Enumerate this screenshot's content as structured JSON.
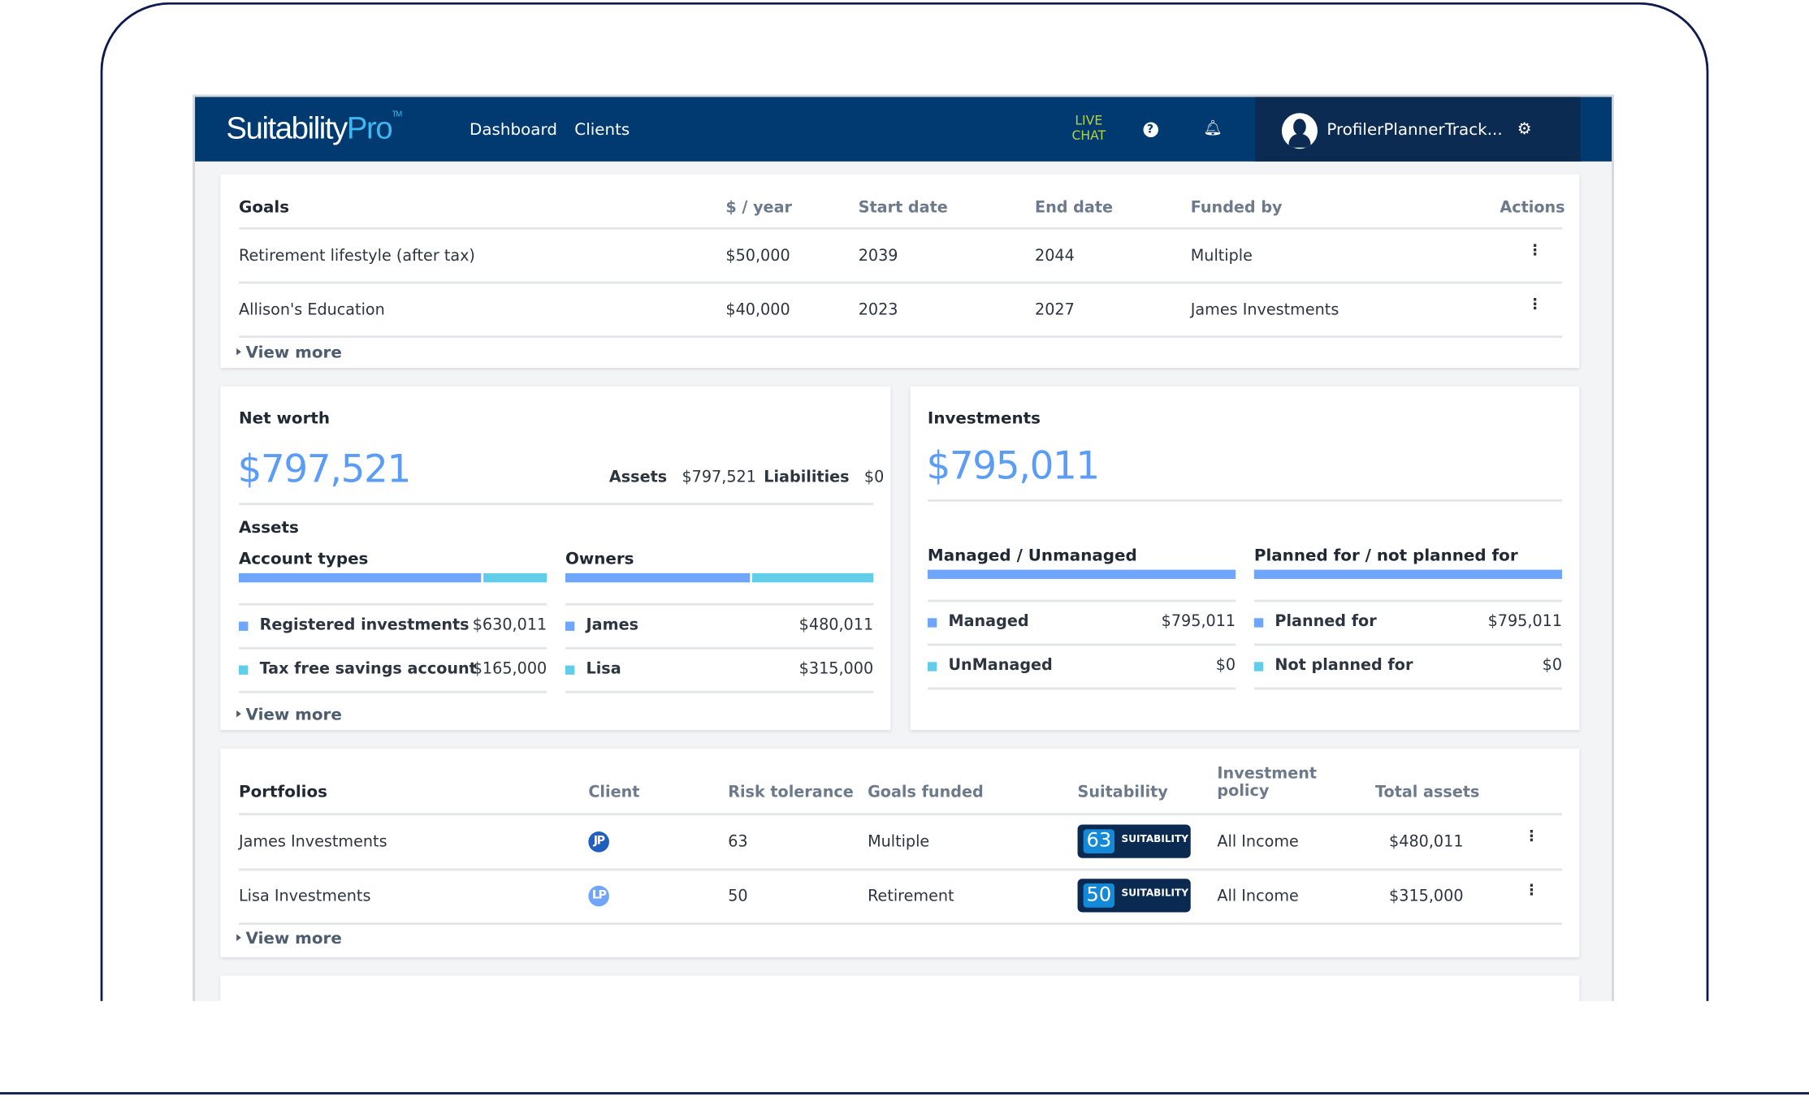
{
  "colors": {
    "header": "#003a70",
    "accent": "#5b9cf6",
    "secondary": "#62cdea",
    "badge": "#0a2a52"
  },
  "header": {
    "logo_main": "Suitability",
    "logo_pro": "Pro",
    "logo_tm": "TM",
    "nav": [
      "Dashboard",
      "Clients"
    ],
    "live_chat": [
      "LIVE",
      "CHAT"
    ],
    "icons": [
      "help-icon",
      "bell-icon",
      "gear-icon"
    ],
    "user": "ProfilerPlannerTrack..."
  },
  "goals": {
    "title": "Goals",
    "columns": [
      "$ / year",
      "Start date",
      "End date",
      "Funded by",
      "Actions"
    ],
    "rows": [
      {
        "name": "Retirement lifestyle (after tax)",
        "amount": "$50,000",
        "start": "2039",
        "end": "2044",
        "funded": "Multiple"
      },
      {
        "name": "Allison's Education",
        "amount": "$40,000",
        "start": "2023",
        "end": "2027",
        "funded": "James Investments"
      }
    ],
    "view_more": "View more"
  },
  "networth": {
    "title": "Net worth",
    "value": "$797,521",
    "assets_label": "Assets",
    "assets": "$797,521",
    "liab_label": "Liabilities",
    "liab": "$0",
    "section": "Assets",
    "account_types": {
      "title": "Account types",
      "split_pct": [
        79.2,
        20.8
      ],
      "items": [
        {
          "label": "Registered investments",
          "value": "$630,011"
        },
        {
          "label": "Tax free savings account",
          "value": "$165,000"
        }
      ]
    },
    "owners": {
      "title": "Owners",
      "split_pct": [
        60.4,
        39.6
      ],
      "items": [
        {
          "label": "James",
          "value": "$480,011"
        },
        {
          "label": "Lisa",
          "value": "$315,000"
        }
      ]
    },
    "view_more": "View more"
  },
  "investments": {
    "title": "Investments",
    "value": "$795,011",
    "managed": {
      "title": "Managed / Unmanaged",
      "split_pct": [
        100,
        0
      ],
      "items": [
        {
          "label": "Managed",
          "value": "$795,011"
        },
        {
          "label": "UnManaged",
          "value": "$0"
        }
      ]
    },
    "planned": {
      "title": "Planned for / not planned for",
      "split_pct": [
        100,
        0
      ],
      "items": [
        {
          "label": "Planned for",
          "value": "$795,011"
        },
        {
          "label": "Not planned for",
          "value": "$0"
        }
      ]
    }
  },
  "portfolios": {
    "title": "Portfolios",
    "columns": [
      "Client",
      "Risk tolerance",
      "Goals funded",
      "Suitability",
      "Investment",
      "policy",
      "Total assets"
    ],
    "badge_label": "SUITABILITY",
    "rows": [
      {
        "name": "James Investments",
        "client": "JP",
        "risk": "63",
        "goals": "Multiple",
        "suit": "63",
        "policy": "All Income",
        "total": "$480,011"
      },
      {
        "name": "Lisa Investments",
        "client": "LP",
        "risk": "50",
        "goals": "Retirement",
        "suit": "50",
        "policy": "All Income",
        "total": "$315,000"
      }
    ],
    "view_more": "View more"
  }
}
